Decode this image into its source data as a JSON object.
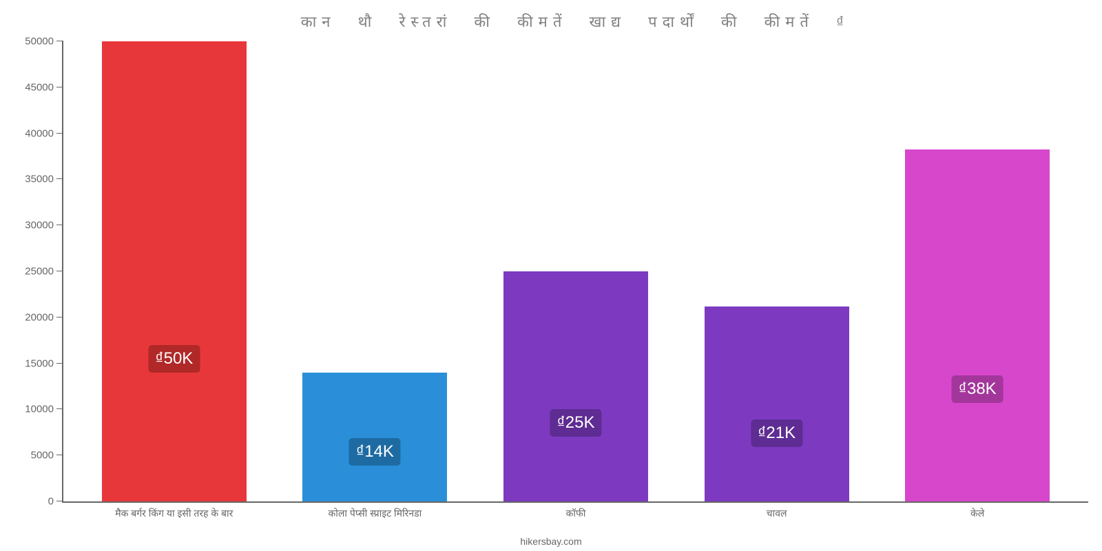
{
  "chart": {
    "type": "bar",
    "title": "कान थौ रेस्तरां की कीमतें खाद्य पदार्थों की कीमतें ₫",
    "title_color": "#808080",
    "title_fontsize": 22,
    "background_color": "#ffffff",
    "axis_color": "#666666",
    "ylim": [
      0,
      50000
    ],
    "ytick_step": 5000,
    "yticks": [
      0,
      5000,
      10000,
      15000,
      20000,
      25000,
      30000,
      35000,
      40000,
      45000,
      50000
    ],
    "bar_width": 0.72,
    "categories": [
      "मैक बर्गर किंग या इसी तरह के बार",
      "कोला पेप्सी स्प्राइट मिरिनडा",
      "कॉफी",
      "चावल",
      "केले"
    ],
    "values": [
      50000,
      14000,
      25000,
      21200,
      38250
    ],
    "value_labels": [
      "₫50K",
      "₫14K",
      "₫25K",
      "₫21K",
      "₫38K"
    ],
    "bar_colors": [
      "#e8373a",
      "#2a8fd8",
      "#7d3ac1",
      "#7d3ac1",
      "#d747cc"
    ],
    "badge_colors": [
      "#b02828",
      "#1e6ba3",
      "#5e2c92",
      "#5e2c92",
      "#a3369b"
    ],
    "label_fontsize": 14,
    "label_color": "#666666",
    "value_fontsize": 24,
    "source": "hikersbay.com"
  }
}
